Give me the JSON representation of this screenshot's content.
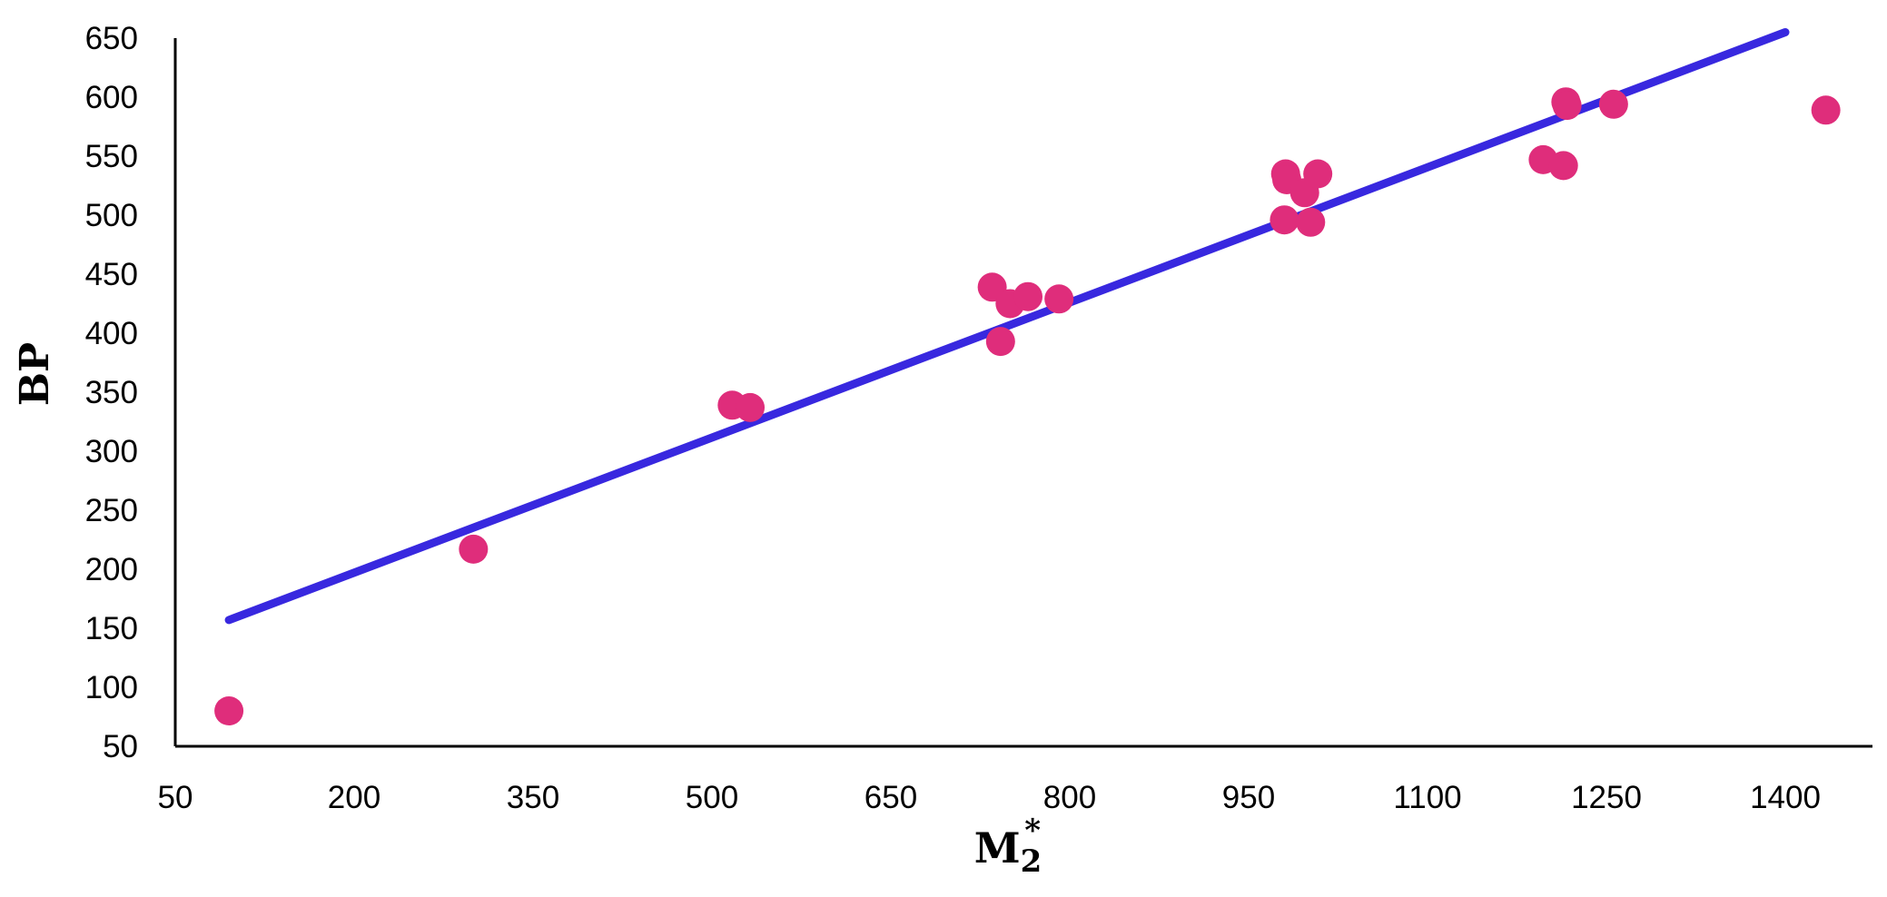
{
  "chart_data": {
    "type": "scatter",
    "xlabel_main": "M",
    "xlabel_sub": "2",
    "xlabel_sup": "*",
    "ylabel": "BP",
    "x_ticks": [
      50,
      200,
      350,
      500,
      650,
      800,
      950,
      1100,
      1250,
      1400
    ],
    "y_ticks": [
      50,
      100,
      150,
      200,
      250,
      300,
      350,
      400,
      450,
      500,
      550,
      600,
      650
    ],
    "xlim": [
      50,
      1500
    ],
    "ylim": [
      50,
      650
    ],
    "grid": false,
    "legend": "none",
    "colors": {
      "points": "#df2d7b",
      "trendline": "#3828df",
      "axis": "#000000"
    },
    "series": [
      {
        "values": [
          {
            "x": 95,
            "y": 80
          },
          {
            "x": 300,
            "y": 217
          },
          {
            "x": 517,
            "y": 339
          },
          {
            "x": 532,
            "y": 337
          },
          {
            "x": 735,
            "y": 439
          },
          {
            "x": 742,
            "y": 393
          },
          {
            "x": 750,
            "y": 425
          },
          {
            "x": 765,
            "y": 431
          },
          {
            "x": 791,
            "y": 429
          },
          {
            "x": 981,
            "y": 535
          },
          {
            "x": 982,
            "y": 530
          },
          {
            "x": 997,
            "y": 519
          },
          {
            "x": 1008,
            "y": 535
          },
          {
            "x": 980,
            "y": 496
          },
          {
            "x": 1002,
            "y": 494
          },
          {
            "x": 1197,
            "y": 547
          },
          {
            "x": 1214,
            "y": 542
          },
          {
            "x": 1216,
            "y": 596
          },
          {
            "x": 1217,
            "y": 593
          },
          {
            "x": 1256,
            "y": 594
          },
          {
            "x": 1434,
            "y": 589
          }
        ]
      }
    ],
    "trendline": {
      "x": [
        95,
        1400
      ],
      "y": [
        157,
        655
      ]
    }
  }
}
